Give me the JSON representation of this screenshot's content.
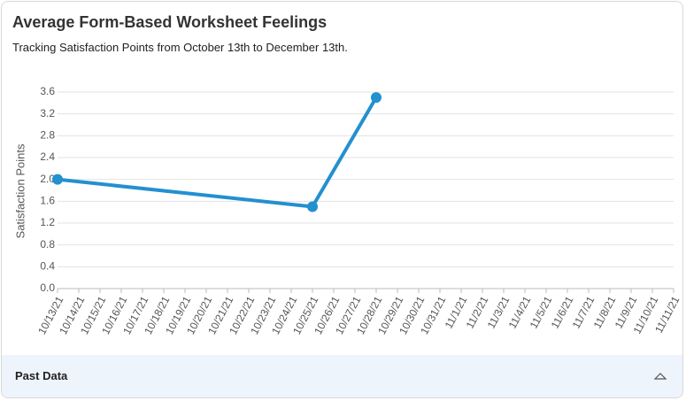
{
  "chart_data": {
    "type": "line",
    "title": "Average Form-Based Worksheet Feelings",
    "subtitle": "Tracking Satisfaction Points from October 13th to December 13th.",
    "y_label": "Satisfaction Points",
    "categories": [
      "10/13/21",
      "10/14/21",
      "10/15/21",
      "10/16/21",
      "10/17/21",
      "10/18/21",
      "10/19/21",
      "10/20/21",
      "10/21/21",
      "10/22/21",
      "10/23/21",
      "10/24/21",
      "10/25/21",
      "10/26/21",
      "10/27/21",
      "10/28/21",
      "10/29/21",
      "10/30/21",
      "10/31/21",
      "11/1/21",
      "11/2/21",
      "11/3/21",
      "11/4/21",
      "11/5/21",
      "11/6/21",
      "11/7/21",
      "11/8/21",
      "11/9/21",
      "11/10/21",
      "11/11/21"
    ],
    "points": {
      "x": [
        "10/13/21",
        "10/25/21",
        "10/28/21"
      ],
      "values": [
        2.0,
        1.5,
        3.5
      ]
    },
    "color": "#2390cf",
    "ylim": [
      0,
      3.6
    ],
    "yticks": [
      {
        "value": 0,
        "label": "0.0"
      },
      0.4,
      0.8,
      1.2,
      1.6,
      {
        "value": 2,
        "label": "2.0"
      },
      2.4,
      2.8,
      3.2,
      3.6
    ],
    "grid": true
  },
  "footer": {
    "label": "Past Data"
  }
}
